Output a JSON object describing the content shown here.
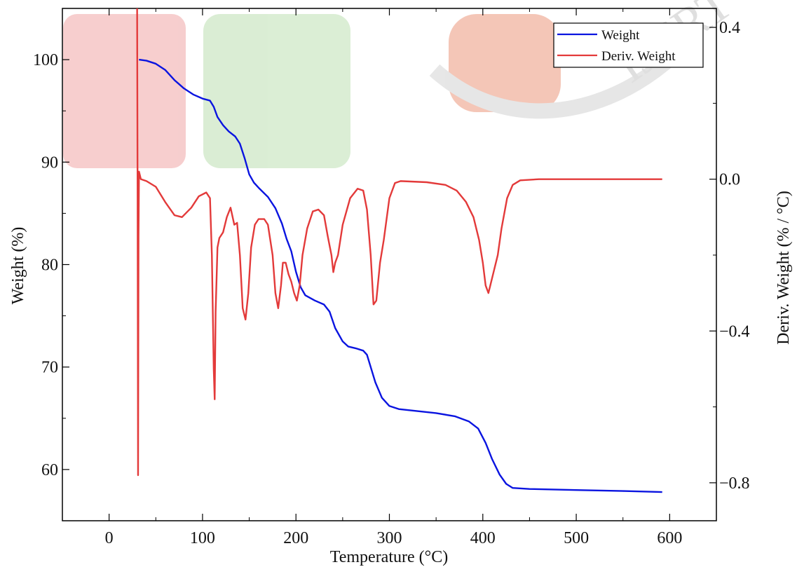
{
  "watermark": {
    "text": "IJCRT",
    "colors": [
      "#f6c9c9",
      "#d7ecd0",
      "#f3c0b0",
      "#e4e4e4"
    ]
  },
  "chart_data": {
    "type": "line",
    "title": "",
    "xlabel": "Temperature (°C)",
    "ylabel_left": "Weight (%)",
    "ylabel_right": "Deriv. Weight (% / °C)",
    "xlim": [
      -50,
      650
    ],
    "ylim_left": [
      55,
      105
    ],
    "ylim_right": [
      -0.9,
      0.45
    ],
    "x_ticks": [
      0,
      100,
      200,
      300,
      400,
      500,
      600
    ],
    "y_left_ticks": [
      60,
      70,
      80,
      90,
      100
    ],
    "y_right_ticks": [
      -0.8,
      -0.4,
      0.0,
      0.4
    ],
    "y_right_tick_labels": [
      "−0.8",
      "−0.4",
      "0.0",
      "0.4"
    ],
    "grid": false,
    "legend_position": "top-right",
    "series": [
      {
        "name": "Weight",
        "axis": "left",
        "color": "#0a14e0",
        "points": [
          [
            32,
            100.0
          ],
          [
            40,
            99.9
          ],
          [
            50,
            99.6
          ],
          [
            60,
            99.0
          ],
          [
            70,
            98.0
          ],
          [
            80,
            97.2
          ],
          [
            90,
            96.6
          ],
          [
            100,
            96.2
          ],
          [
            108,
            96.0
          ],
          [
            112,
            95.4
          ],
          [
            116,
            94.4
          ],
          [
            122,
            93.6
          ],
          [
            128,
            93.0
          ],
          [
            135,
            92.5
          ],
          [
            140,
            91.8
          ],
          [
            145,
            90.4
          ],
          [
            150,
            88.8
          ],
          [
            155,
            88.0
          ],
          [
            160,
            87.5
          ],
          [
            170,
            86.6
          ],
          [
            178,
            85.5
          ],
          [
            185,
            84.0
          ],
          [
            190,
            82.5
          ],
          [
            195,
            81.3
          ],
          [
            200,
            79.3
          ],
          [
            205,
            77.8
          ],
          [
            210,
            77.0
          ],
          [
            220,
            76.5
          ],
          [
            230,
            76.1
          ],
          [
            236,
            75.4
          ],
          [
            242,
            73.8
          ],
          [
            250,
            72.5
          ],
          [
            256,
            72.0
          ],
          [
            265,
            71.8
          ],
          [
            272,
            71.6
          ],
          [
            276,
            71.2
          ],
          [
            280,
            70.0
          ],
          [
            285,
            68.5
          ],
          [
            292,
            67.0
          ],
          [
            300,
            66.2
          ],
          [
            310,
            65.9
          ],
          [
            330,
            65.7
          ],
          [
            350,
            65.5
          ],
          [
            370,
            65.2
          ],
          [
            385,
            64.7
          ],
          [
            395,
            64.0
          ],
          [
            403,
            62.6
          ],
          [
            410,
            61.0
          ],
          [
            418,
            59.5
          ],
          [
            425,
            58.6
          ],
          [
            432,
            58.2
          ],
          [
            450,
            58.1
          ],
          [
            500,
            58.0
          ],
          [
            550,
            57.9
          ],
          [
            592,
            57.8
          ]
        ]
      },
      {
        "name": "Deriv. Weight",
        "axis": "right",
        "color": "#e33a3a",
        "points": [
          [
            30,
            0.45
          ],
          [
            30.5,
            -0.05
          ],
          [
            31,
            -0.78
          ],
          [
            31.5,
            -0.15
          ],
          [
            32,
            0.02
          ],
          [
            34,
            0.0
          ],
          [
            40,
            -0.005
          ],
          [
            50,
            -0.02
          ],
          [
            60,
            -0.06
          ],
          [
            70,
            -0.095
          ],
          [
            78,
            -0.1
          ],
          [
            88,
            -0.075
          ],
          [
            96,
            -0.045
          ],
          [
            104,
            -0.035
          ],
          [
            108,
            -0.05
          ],
          [
            110,
            -0.2
          ],
          [
            112,
            -0.5
          ],
          [
            113,
            -0.58
          ],
          [
            114,
            -0.35
          ],
          [
            116,
            -0.18
          ],
          [
            118,
            -0.155
          ],
          [
            122,
            -0.14
          ],
          [
            126,
            -0.1
          ],
          [
            130,
            -0.075
          ],
          [
            134,
            -0.12
          ],
          [
            137,
            -0.115
          ],
          [
            140,
            -0.2
          ],
          [
            143,
            -0.34
          ],
          [
            146,
            -0.37
          ],
          [
            149,
            -0.3
          ],
          [
            152,
            -0.18
          ],
          [
            156,
            -0.12
          ],
          [
            160,
            -0.105
          ],
          [
            166,
            -0.105
          ],
          [
            170,
            -0.12
          ],
          [
            175,
            -0.2
          ],
          [
            178,
            -0.3
          ],
          [
            181,
            -0.34
          ],
          [
            184,
            -0.28
          ],
          [
            186,
            -0.22
          ],
          [
            189,
            -0.22
          ],
          [
            192,
            -0.25
          ],
          [
            195,
            -0.27
          ],
          [
            198,
            -0.3
          ],
          [
            201,
            -0.32
          ],
          [
            204,
            -0.28
          ],
          [
            207,
            -0.2
          ],
          [
            212,
            -0.13
          ],
          [
            218,
            -0.085
          ],
          [
            224,
            -0.08
          ],
          [
            230,
            -0.095
          ],
          [
            234,
            -0.15
          ],
          [
            238,
            -0.2
          ],
          [
            240,
            -0.245
          ],
          [
            242,
            -0.22
          ],
          [
            245,
            -0.2
          ],
          [
            250,
            -0.12
          ],
          [
            258,
            -0.05
          ],
          [
            266,
            -0.025
          ],
          [
            272,
            -0.03
          ],
          [
            276,
            -0.08
          ],
          [
            280,
            -0.2
          ],
          [
            283,
            -0.33
          ],
          [
            286,
            -0.32
          ],
          [
            290,
            -0.22
          ],
          [
            294,
            -0.16
          ],
          [
            300,
            -0.05
          ],
          [
            306,
            -0.01
          ],
          [
            312,
            -0.005
          ],
          [
            340,
            -0.008
          ],
          [
            360,
            -0.015
          ],
          [
            372,
            -0.03
          ],
          [
            382,
            -0.06
          ],
          [
            390,
            -0.1
          ],
          [
            396,
            -0.16
          ],
          [
            400,
            -0.22
          ],
          [
            403,
            -0.28
          ],
          [
            406,
            -0.3
          ],
          [
            408,
            -0.28
          ],
          [
            412,
            -0.24
          ],
          [
            416,
            -0.2
          ],
          [
            420,
            -0.13
          ],
          [
            426,
            -0.05
          ],
          [
            432,
            -0.015
          ],
          [
            440,
            -0.003
          ],
          [
            460,
            0.0
          ],
          [
            500,
            0.0
          ],
          [
            550,
            0.0
          ],
          [
            592,
            0.0
          ]
        ]
      }
    ]
  }
}
